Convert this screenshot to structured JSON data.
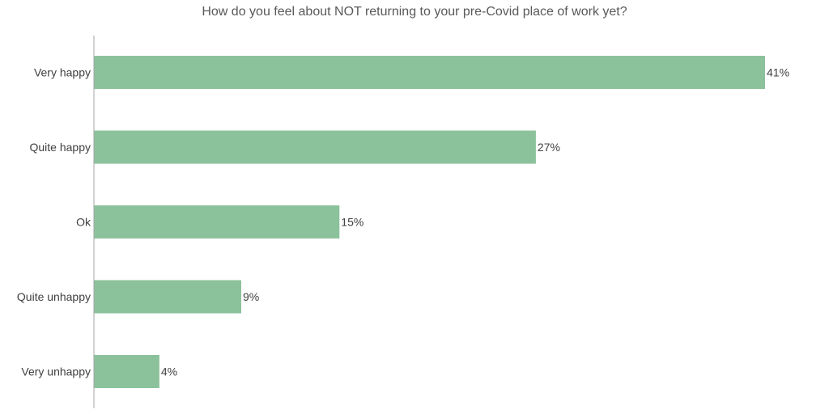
{
  "chart_data": {
    "type": "bar",
    "orientation": "horizontal",
    "title": "How do you feel about NOT returning to your pre-Covid place of work yet?",
    "categories": [
      "Very happy",
      "Quite happy",
      "Ok",
      "Quite unhappy",
      "Very unhappy"
    ],
    "values": [
      41,
      27,
      15,
      9,
      4
    ],
    "value_labels": [
      "41%",
      "27%",
      "15%",
      "9%",
      "4%"
    ],
    "value_unit": "%",
    "xlim": [
      0,
      41
    ],
    "grid": false,
    "legend": "none",
    "bar_color": "#8cc29b",
    "axis_color": "#a6a6a6",
    "text_color": "#404040"
  }
}
